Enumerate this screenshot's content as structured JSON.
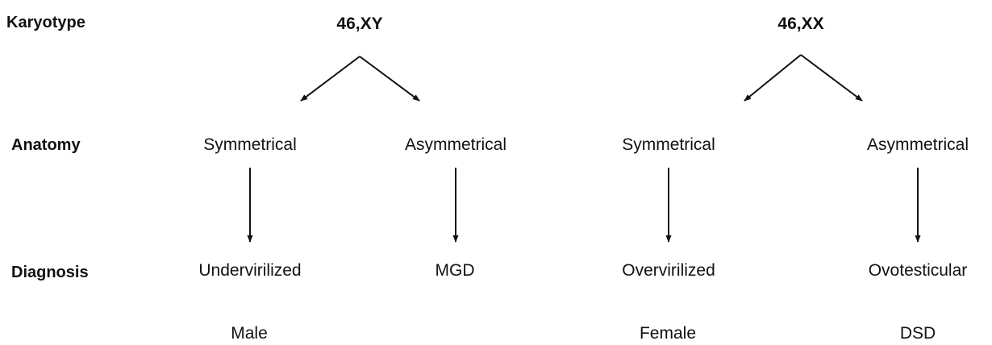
{
  "row_labels": {
    "karyotype": "Karyotype",
    "anatomy": "Anatomy",
    "diagnosis": "Diagnosis"
  },
  "branches": [
    {
      "karyotype": "46,XY",
      "outcomes": [
        {
          "anatomy": "Symmetrical",
          "diagnosis": "Undervirilized",
          "diagnosis_line2": "Male"
        },
        {
          "anatomy": "Asymmetrical",
          "diagnosis": "MGD"
        }
      ]
    },
    {
      "karyotype": "46,XX",
      "outcomes": [
        {
          "anatomy": "Symmetrical",
          "diagnosis": "Overvirilized",
          "diagnosis_line2": "Female"
        },
        {
          "anatomy": "Asymmetrical",
          "diagnosis": "Ovotesticular",
          "diagnosis_line2": "DSD"
        }
      ]
    }
  ]
}
